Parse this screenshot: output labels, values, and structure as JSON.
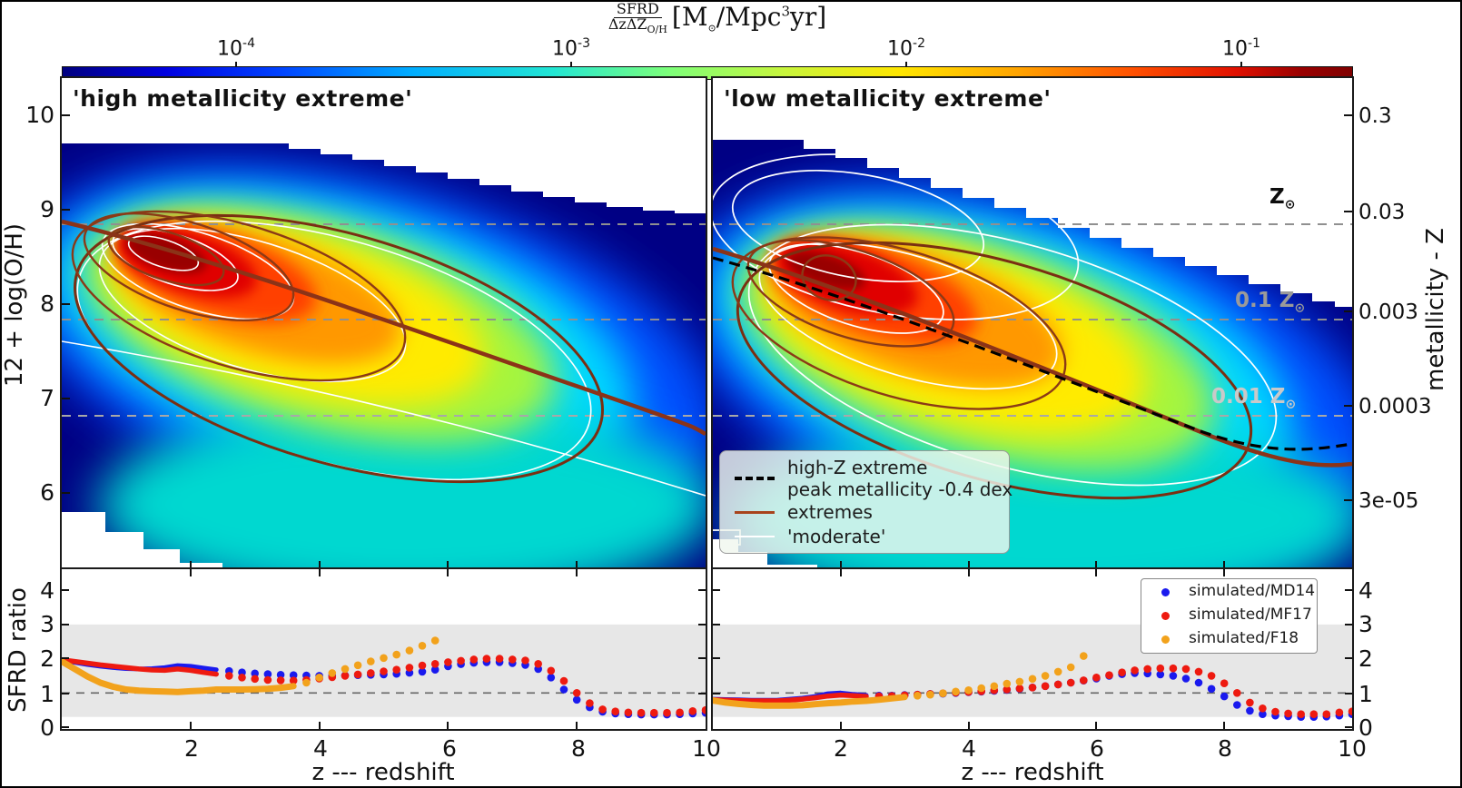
{
  "colorbar": {
    "title_numerator": "SFRD",
    "title_denominator_main": "ΔzΔZ",
    "title_denominator_sub": "O/H",
    "units_p1": "[M",
    "units_sub": "⊙",
    "units_p2": "/Mpc",
    "units_sup": "3",
    "units_p3": "yr]",
    "ticks": [
      {
        "base": "10",
        "exp": "-4"
      },
      {
        "base": "10",
        "exp": "-3"
      },
      {
        "base": "10",
        "exp": "-2"
      },
      {
        "base": "10",
        "exp": "-1"
      }
    ]
  },
  "panels": {
    "left": {
      "title": "'high metallicity extreme'"
    },
    "right": {
      "title": "'low metallicity extreme'"
    }
  },
  "axes": {
    "main_y_left": {
      "label": "12 + log(O/H)",
      "ticks": [
        "10",
        "9",
        "8",
        "7",
        "6"
      ]
    },
    "main_y_right": {
      "label": "metallicity - Z",
      "ticks": [
        "0.3",
        "0.03",
        "0.003",
        "0.0003",
        "3e-05"
      ]
    },
    "ratio_y": {
      "label": "SFRD ratio",
      "ticks": [
        "4",
        "3",
        "2",
        "1",
        "0"
      ]
    },
    "x": {
      "label": "z --- redshift",
      "ticks": [
        "2",
        "4",
        "6",
        "8",
        "10"
      ]
    }
  },
  "annotations": {
    "solar": {
      "main": "Z",
      "sub": "⊙"
    },
    "tenth": {
      "main": "0.1 Z",
      "sub": "⊙"
    },
    "hundredth": {
      "main": "0.01 Z",
      "sub": "⊙"
    }
  },
  "legend_main": {
    "items": [
      {
        "style": "dashed-black",
        "label_line1": "high-Z extreme",
        "label_line2": "peak metallicity -0.4 dex"
      },
      {
        "style": "solid-brown",
        "label_line1": "extremes"
      },
      {
        "style": "solid-white",
        "label_line1": "'moderate'"
      }
    ]
  },
  "legend_ratio": {
    "items": [
      {
        "color": "#1a1aee",
        "label": "simulated/MD14"
      },
      {
        "color": "#ee1a10",
        "label": "simulated/MF17"
      },
      {
        "color": "#f2a21c",
        "label": "simulated/F18"
      }
    ]
  },
  "chart_data": [
    {
      "id": "heatmap-left",
      "type": "heatmap",
      "title": "'high metallicity extreme'",
      "xlabel": "z --- redshift",
      "ylabel": "12 + log(O/H)",
      "x_range": [
        0,
        10
      ],
      "y_range": [
        5.2,
        10.4
      ],
      "colormap": "jet",
      "colorbar_label": "SFRD/(dz dZ_O/H) [Msun/Mpc^3 yr]",
      "colorbar_ticks": [
        "1e-4",
        "1e-3",
        "1e-2",
        "1e-1"
      ],
      "peak": {
        "z": 1.6,
        "logOH12": 8.6
      },
      "solar_reference_lines_logOH12": [
        8.85,
        7.84,
        6.82
      ],
      "extremes_relation_z_logOH12": [
        [
          0,
          8.9
        ],
        [
          2,
          8.45
        ],
        [
          4,
          8.05
        ],
        [
          6,
          7.6
        ],
        [
          8,
          7.1
        ],
        [
          10,
          6.65
        ]
      ],
      "contours": [
        "white: 'moderate' model SFRD distribution",
        "brown: extremes model SFRD distribution"
      ]
    },
    {
      "id": "heatmap-right",
      "type": "heatmap",
      "title": "'low metallicity extreme'",
      "xlabel": "z --- redshift",
      "ylabel": "metallicity - Z",
      "x_range": [
        0,
        10
      ],
      "y_range": [
        5.2,
        10.4
      ],
      "colormap": "jet",
      "colorbar_label": "SFRD/(dz dZ_O/H) [Msun/Mpc^3 yr]",
      "colorbar_ticks": [
        "1e-4",
        "1e-3",
        "1e-2",
        "1e-1"
      ],
      "peak": {
        "z": 1.9,
        "logOH12": 8.3
      },
      "solar_reference_lines_logOH12": [
        8.85,
        7.84,
        6.82
      ],
      "dashed_relation_z_logOH12": [
        [
          0,
          8.5
        ],
        [
          2,
          8.2
        ],
        [
          4,
          7.75
        ],
        [
          6,
          7.3
        ],
        [
          8,
          6.85
        ],
        [
          10,
          6.5
        ]
      ],
      "extremes_relation_z_logOH12": [
        [
          0,
          8.6
        ],
        [
          2,
          8.25
        ],
        [
          4,
          7.8
        ],
        [
          6,
          7.3
        ],
        [
          8,
          6.75
        ],
        [
          10,
          6.3
        ]
      ],
      "contours": [
        "white: 'moderate' model SFRD distribution",
        "brown: extremes model SFRD distribution"
      ]
    },
    {
      "id": "ratio-left",
      "type": "scatter",
      "xlabel": "z --- redshift",
      "ylabel": "SFRD ratio",
      "xlim": [
        0,
        10
      ],
      "ylim": [
        0,
        4.6
      ],
      "shaded_band": [
        0.3,
        3.0
      ],
      "reference_hline": 1.0,
      "x_start": 0,
      "x_step": 0.2,
      "series": [
        {
          "name": "simulated/MD14",
          "color": "#1a1aee",
          "solid_until": 2.45,
          "line_width": 5,
          "values": [
            1.95,
            1.89,
            1.83,
            1.78,
            1.74,
            1.71,
            1.7,
            1.71,
            1.74,
            1.8,
            1.78,
            1.73,
            1.68,
            1.64,
            1.6,
            1.57,
            1.55,
            1.53,
            1.52,
            1.51,
            1.5,
            1.5,
            1.51,
            1.52,
            1.53,
            1.54,
            1.56,
            1.59,
            1.62,
            1.68,
            1.78,
            1.84,
            1.88,
            1.9,
            1.9,
            1.87,
            1.82,
            1.7,
            1.45,
            1.1,
            0.8,
            0.58,
            0.45,
            0.4,
            0.38,
            0.37,
            0.37,
            0.37,
            0.38,
            0.4,
            0.42
          ]
        },
        {
          "name": "simulated/MF17",
          "color": "#ee1a10",
          "solid_until": 2.45,
          "line_width": 5.5,
          "values": [
            1.97,
            1.92,
            1.87,
            1.82,
            1.78,
            1.74,
            1.7,
            1.67,
            1.66,
            1.7,
            1.66,
            1.6,
            1.55,
            1.5,
            1.45,
            1.41,
            1.38,
            1.37,
            1.36,
            1.38,
            1.42,
            1.46,
            1.5,
            1.54,
            1.58,
            1.63,
            1.68,
            1.74,
            1.8,
            1.85,
            1.9,
            1.94,
            1.98,
            2.0,
            2.0,
            1.98,
            1.95,
            1.85,
            1.65,
            1.35,
            1.0,
            0.7,
            0.52,
            0.46,
            0.43,
            0.42,
            0.42,
            0.42,
            0.43,
            0.47,
            0.5
          ]
        },
        {
          "name": "simulated/F18",
          "color": "#f2a21c",
          "solid_until": 3.6,
          "line_width": 7,
          "values": [
            1.92,
            1.7,
            1.48,
            1.3,
            1.18,
            1.1,
            1.07,
            1.05,
            1.04,
            1.03,
            1.05,
            1.07,
            1.1,
            1.1,
            1.1,
            1.11,
            1.12,
            1.15,
            1.2,
            1.3,
            1.45,
            1.58,
            1.7,
            1.81,
            1.92,
            2.02,
            2.12,
            2.24,
            2.38,
            2.53
          ]
        }
      ]
    },
    {
      "id": "ratio-right",
      "type": "scatter",
      "xlabel": "z --- redshift",
      "ylabel": "SFRD ratio",
      "xlim": [
        0,
        10
      ],
      "ylim": [
        0,
        4.6
      ],
      "shaded_band": [
        0.3,
        3.0
      ],
      "reference_hline": 1.0,
      "x_start": 0,
      "x_step": 0.2,
      "series": [
        {
          "name": "simulated/MD14",
          "color": "#1a1aee",
          "solid_until": 2.45,
          "line_width": 5,
          "values": [
            0.82,
            0.81,
            0.8,
            0.79,
            0.79,
            0.79,
            0.82,
            0.85,
            0.9,
            0.98,
            1.0,
            0.96,
            0.93,
            0.92,
            0.92,
            0.94,
            0.95,
            0.97,
            0.98,
            1.0,
            1.02,
            1.04,
            1.06,
            1.09,
            1.12,
            1.16,
            1.2,
            1.25,
            1.3,
            1.36,
            1.42,
            1.5,
            1.55,
            1.58,
            1.57,
            1.54,
            1.5,
            1.42,
            1.3,
            1.12,
            0.9,
            0.65,
            0.48,
            0.38,
            0.34,
            0.32,
            0.3,
            0.3,
            0.31,
            0.34,
            0.38
          ]
        },
        {
          "name": "simulated/MF17",
          "color": "#ee1a10",
          "solid_until": 2.45,
          "line_width": 5.5,
          "values": [
            0.8,
            0.79,
            0.78,
            0.77,
            0.77,
            0.77,
            0.79,
            0.82,
            0.86,
            0.91,
            0.94,
            0.92,
            0.9,
            0.9,
            0.91,
            0.93,
            0.95,
            0.97,
            0.99,
            1.01,
            1.03,
            1.05,
            1.08,
            1.1,
            1.13,
            1.16,
            1.2,
            1.25,
            1.3,
            1.37,
            1.45,
            1.52,
            1.6,
            1.66,
            1.7,
            1.72,
            1.72,
            1.7,
            1.62,
            1.5,
            1.28,
            1.0,
            0.72,
            0.55,
            0.45,
            0.4,
            0.38,
            0.38,
            0.38,
            0.43,
            0.46
          ]
        },
        {
          "name": "simulated/F18",
          "color": "#f2a21c",
          "solid_until": 3.0,
          "line_width": 7,
          "values": [
            0.78,
            0.72,
            0.68,
            0.65,
            0.63,
            0.63,
            0.63,
            0.64,
            0.67,
            0.7,
            0.72,
            0.75,
            0.77,
            0.8,
            0.84,
            0.88,
            0.92,
            0.95,
            0.99,
            1.04,
            1.08,
            1.14,
            1.2,
            1.27,
            1.33,
            1.41,
            1.5,
            1.62,
            1.75,
            2.08
          ]
        }
      ]
    }
  ]
}
